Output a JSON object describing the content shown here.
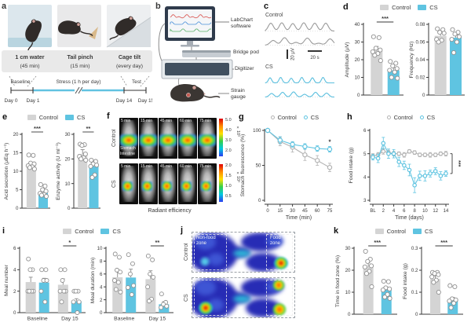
{
  "panels": {
    "a": "a",
    "b": "b",
    "c": "c",
    "d": "d",
    "e": "e",
    "f": "f",
    "g": "g",
    "h": "h",
    "i": "i",
    "j": "j",
    "k": "k"
  },
  "legend": {
    "control": "Control",
    "cs": "CS"
  },
  "colors": {
    "control": "#d4d4d4",
    "cs": "#5fc4e1",
    "control_line": "#b3b3b3",
    "cs_line": "#5fc4e1",
    "point_stroke": "#8f8f8f",
    "timeline": "#62c3e1",
    "text": "#3a3a3a"
  },
  "panel_a": {
    "stressors": [
      {
        "name": "1 cm water",
        "duration": "(45 min)"
      },
      {
        "name": "Tail pinch",
        "duration": "(15 min)"
      },
      {
        "name": "Cage tilt",
        "duration": "(every day)"
      }
    ],
    "timeline": {
      "baseline": "Baseline",
      "stress": "Stress (1 h per day)",
      "test": "Test",
      "days": [
        "Day 0",
        "Day 1",
        "Day 14",
        "Day 15"
      ]
    }
  },
  "panel_b": {
    "labels": [
      "LabChart software",
      "Bridge pod",
      "Digitizer",
      "Strain gauge"
    ]
  },
  "panel_c": {
    "control": "Control",
    "cs": "CS",
    "scale_v": "20 μV",
    "scale_h": "20 s"
  },
  "panel_f": {
    "control": "Control",
    "cs": "CS",
    "times": [
      "5 min",
      "15 min",
      "45 min",
      "60 min",
      "75 min"
    ],
    "organ_labels": [
      "Stomach",
      "Intestine"
    ],
    "colorbar_control": [
      "5.0",
      "4.0",
      "3.0",
      "2.0"
    ],
    "colorbar_cs": [
      "2.0",
      "1.5",
      "1.0",
      "0.5"
    ],
    "scale_exp": "×10⁶",
    "caption": "Radiant efficiency"
  },
  "panel_j": {
    "control": "Control",
    "cs": "CS",
    "nonfood": "Non-food zone",
    "food": "Food zone"
  },
  "chart_data": [
    {
      "id": "d-amplitude",
      "type": "bar",
      "ylabel": "Amplitude (μV)",
      "ylim": [
        0,
        40
      ],
      "yticks": [
        0,
        10,
        20,
        30,
        40
      ],
      "ytick_labels": [
        "0",
        "10",
        "20",
        "30",
        "40"
      ],
      "categories": [
        "Control",
        "CS"
      ],
      "values": [
        25,
        14
      ],
      "errors": [
        2.5,
        1.5
      ],
      "points": [
        [
          33,
          32.5,
          26.5,
          25.5,
          24.5,
          23.5,
          22.5,
          19.5
        ],
        [
          19,
          18,
          16.5,
          15,
          14,
          13,
          10,
          9.5
        ]
      ],
      "sig": "***",
      "ml": 27,
      "bw": 15
    },
    {
      "id": "d-frequency",
      "type": "bar",
      "ylabel": "Frequency (Hz)",
      "ylim": [
        0,
        0.08
      ],
      "yticks": [
        0,
        0.02,
        0.04,
        0.06,
        0.08
      ],
      "ytick_labels": [
        "0",
        "0.02",
        "0.04",
        "0.06",
        "0.08"
      ],
      "categories": [
        "Control",
        "CS"
      ],
      "values": [
        0.067,
        0.065
      ],
      "errors": [
        0.003,
        0.003
      ],
      "points": [
        [
          0.075,
          0.074,
          0.071,
          0.07,
          0.063,
          0.062,
          0.06
        ],
        [
          0.074,
          0.071,
          0.069,
          0.066,
          0.063,
          0.06,
          0.048
        ]
      ],
      "ml": 28,
      "bw": 15
    },
    {
      "id": "e-acid",
      "type": "bar",
      "ylabel": "Acid secretion (μEq h⁻¹)",
      "ylim": [
        0,
        20
      ],
      "yticks": [
        0,
        5,
        10,
        15,
        20
      ],
      "ytick_labels": [
        "0",
        "5",
        "10",
        "15",
        "20"
      ],
      "categories": [
        "Control",
        "CS"
      ],
      "values": [
        11.5,
        4.1
      ],
      "errors": [
        0.8,
        0.5
      ],
      "points": [
        [
          14.4,
          14.3,
          12.2,
          12,
          11.5,
          11.2,
          11,
          10.6
        ],
        [
          6.4,
          6,
          5,
          4.6,
          4,
          3.7,
          3.5,
          3.2
        ]
      ],
      "sig": "***",
      "ml": 26,
      "bw": 12
    },
    {
      "id": "e-enzyme",
      "type": "bar",
      "ylabel": "Enzyme activity (U ml⁻¹)",
      "ylim": [
        0,
        30
      ],
      "yticks": [
        0,
        10,
        20,
        30
      ],
      "ytick_labels": [
        "0",
        "10",
        "20",
        "30"
      ],
      "categories": [
        "Control",
        "CS"
      ],
      "values": [
        22,
        17
      ],
      "errors": [
        1.8,
        1.2
      ],
      "points": [
        [
          26,
          25.8,
          25.5,
          22,
          21,
          20.5,
          20,
          19.5
        ],
        [
          19.5,
          19,
          18,
          17.5,
          17,
          13.5,
          12.5
        ]
      ],
      "sig": "**",
      "ml": 26,
      "bw": 12
    },
    {
      "id": "g-fluor",
      "type": "line",
      "ylabel": "Stomach fluorescence (%)",
      "xlabel": "Time (min)",
      "x": [
        0,
        15,
        30,
        45,
        60,
        75
      ],
      "xticks": [
        0,
        15,
        30,
        45,
        60,
        75
      ],
      "xtick_labels": [
        "0",
        "15",
        "30",
        "45",
        "60",
        "75"
      ],
      "ylim": [
        0,
        100
      ],
      "yticks": [
        0,
        50,
        100
      ],
      "ytick_labels": [
        "0",
        "50",
        "100"
      ],
      "series": [
        {
          "name": "Control",
          "values": [
            100,
            84,
            76,
            65,
            57,
            47
          ],
          "errors": [
            2,
            6,
            7,
            8,
            7,
            6
          ]
        },
        {
          "name": "CS",
          "values": [
            100,
            86,
            80,
            77,
            74,
            73
          ],
          "errors": [
            2,
            5,
            4,
            4,
            4,
            4
          ]
        }
      ],
      "sig_end": "*",
      "ml": 34,
      "mr": 12
    },
    {
      "id": "h-food",
      "type": "line",
      "ylabel": "Food intake (g)",
      "xlabel": "Time (days)",
      "x": [
        0,
        1,
        2,
        3,
        4,
        5,
        6,
        7,
        8,
        9,
        10,
        11,
        12,
        13,
        14
      ],
      "xticks": [
        0,
        2,
        4,
        6,
        8,
        10,
        12,
        14
      ],
      "xtick_labels": [
        "BL",
        "2",
        "4",
        "6",
        "8",
        "10",
        "12",
        "14"
      ],
      "ylim": [
        3,
        6
      ],
      "yticks": [
        3,
        4,
        5,
        6
      ],
      "ytick_labels": [
        "3",
        "4",
        "5",
        "6"
      ],
      "series": [
        {
          "name": "Control",
          "values": [
            4.9,
            4.95,
            5.1,
            5.05,
            5.0,
            5.0,
            4.95,
            5.1,
            5.05,
            4.95,
            4.95,
            4.95,
            4.95,
            5.0,
            5.0
          ],
          "errors": [
            0.1,
            0.1,
            0.12,
            0.1,
            0.1,
            0.08,
            0.1,
            0.08,
            0.08,
            0.08,
            0.08,
            0.1,
            0.08,
            0.08,
            0.1
          ]
        },
        {
          "name": "CS",
          "values": [
            4.85,
            4.8,
            5.45,
            5.0,
            5.0,
            4.65,
            4.5,
            4.3,
            3.65,
            4.05,
            4.05,
            4.15,
            4.25,
            4.05,
            4.15
          ],
          "errors": [
            0.12,
            0.18,
            0.25,
            0.2,
            0.18,
            0.2,
            0.18,
            0.25,
            0.32,
            0.2,
            0.22,
            0.15,
            0.15,
            0.18,
            0.12
          ]
        }
      ],
      "sig_bracket": "***",
      "ml": 30,
      "mr": 24,
      "r": 2.2
    },
    {
      "id": "i-number",
      "type": "grouped_bar",
      "ylabel": "Meal number",
      "ylim": [
        0,
        6
      ],
      "yticks": [
        0,
        2,
        4,
        6
      ],
      "ytick_labels": [
        "0",
        "2",
        "4",
        "6"
      ],
      "groups": [
        "Baseline",
        "Day 15"
      ],
      "series": [
        {
          "name": "Control",
          "values": [
            2.85,
            2.6
          ],
          "errors": [
            0.45,
            0.55
          ],
          "points": [
            [
              5,
              4,
              4,
              2,
              2,
              2,
              2
            ],
            [
              4,
              4,
              3,
              2,
              2,
              2,
              1
            ]
          ]
        },
        {
          "name": "CS",
          "values": [
            2.8,
            1.05
          ],
          "errors": [
            0.4,
            0.25
          ],
          "points": [
            [
              4,
              4,
              3,
              3,
              2,
              1
            ],
            [
              2,
              2,
              2,
              1,
              1,
              0
            ]
          ]
        }
      ],
      "sig": "*",
      "sig_group": 1,
      "ml": 23
    },
    {
      "id": "i-duration",
      "type": "grouped_bar",
      "ylabel": "Meal duration (min)",
      "ylim": [
        0,
        10
      ],
      "yticks": [
        0,
        2,
        4,
        6,
        8,
        10
      ],
      "ytick_labels": [
        "0",
        "2",
        "4",
        "6",
        "8",
        "10"
      ],
      "groups": [
        "Baseline",
        "Day 15"
      ],
      "series": [
        {
          "name": "Control",
          "values": [
            5.5,
            5.2
          ],
          "errors": [
            1.2,
            1.3
          ],
          "points": [
            [
              9.1,
              8.6,
              6.6,
              6.3,
              5,
              4.7,
              3.6,
              3.2
            ],
            [
              8.8,
              8.2,
              6,
              5.5,
              4,
              2.1,
              1.8
            ]
          ]
        },
        {
          "name": "CS",
          "values": [
            5.45,
            1.3
          ],
          "errors": [
            1.3,
            0.4
          ],
          "points": [
            [
              9,
              7.6,
              6,
              4.2,
              3.9,
              2.8
            ],
            [
              2.9,
              1.6,
              1.3,
              1,
              0.8
            ]
          ]
        }
      ],
      "sig": "**",
      "sig_group": 1,
      "ml": 23
    },
    {
      "id": "k-zone",
      "type": "bar",
      "ylabel": "Time in food zone (%)",
      "ylim": [
        0,
        30
      ],
      "yticks": [
        0,
        10,
        20,
        30
      ],
      "ytick_labels": [
        "0",
        "10",
        "20",
        "30"
      ],
      "categories": [
        "Control",
        "CS"
      ],
      "values": [
        21.5,
        11.3
      ],
      "errors": [
        1.8,
        1.0
      ],
      "points": [
        [
          28.6,
          25,
          24,
          22,
          21.5,
          19.5,
          18.5,
          12.5
        ],
        [
          15,
          14.8,
          12,
          11.5,
          11,
          9,
          7.8,
          7.2
        ]
      ],
      "sig": "***",
      "ml": 27,
      "bw": 13
    },
    {
      "id": "k-intake",
      "type": "bar",
      "ylabel": "Food intake (g)",
      "ylim": [
        0,
        0.3
      ],
      "yticks": [
        0,
        0.1,
        0.2,
        0.3
      ],
      "ytick_labels": [
        "0",
        "0.1",
        "0.2",
        "0.3"
      ],
      "categories": [
        "Control",
        "CS"
      ],
      "values": [
        0.16,
        0.065
      ],
      "errors": [
        0.015,
        0.012
      ],
      "points": [
        [
          0.19,
          0.19,
          0.185,
          0.18,
          0.17,
          0.155,
          0.145,
          0.1
        ],
        [
          0.13,
          0.125,
          0.07,
          0.065,
          0.06,
          0.05,
          0.03
        ]
      ],
      "sig": "***",
      "ml": 27,
      "bw": 13
    }
  ]
}
